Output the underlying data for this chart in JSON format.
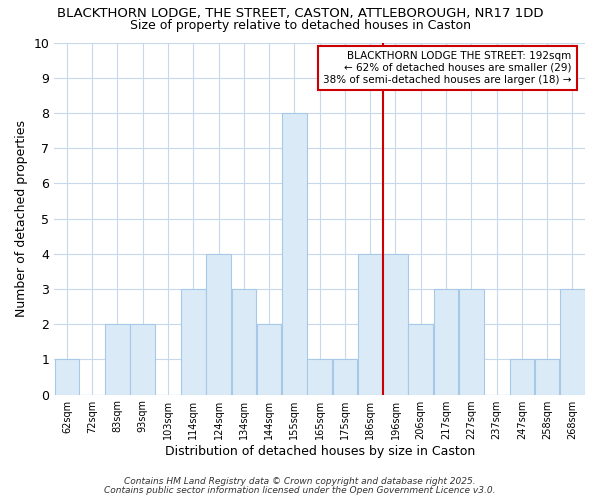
{
  "title_line1": "BLACKTHORN LODGE, THE STREET, CASTON, ATTLEBOROUGH, NR17 1DD",
  "title_line2": "Size of property relative to detached houses in Caston",
  "xlabel": "Distribution of detached houses by size in Caston",
  "ylabel": "Number of detached properties",
  "categories": [
    "62sqm",
    "72sqm",
    "83sqm",
    "93sqm",
    "103sqm",
    "114sqm",
    "124sqm",
    "134sqm",
    "144sqm",
    "155sqm",
    "165sqm",
    "175sqm",
    "186sqm",
    "196sqm",
    "206sqm",
    "217sqm",
    "227sqm",
    "237sqm",
    "247sqm",
    "258sqm",
    "268sqm"
  ],
  "values": [
    1,
    0,
    2,
    2,
    0,
    3,
    4,
    3,
    2,
    8,
    1,
    1,
    4,
    4,
    2,
    3,
    3,
    0,
    1,
    1,
    3
  ],
  "bar_color": "#daeaf7",
  "bar_edge_color": "#a8c8e8",
  "grid_color": "#c8d8ec",
  "background_color": "#ffffff",
  "red_line_color": "#cc0000",
  "annotation_text": "BLACKTHORN LODGE THE STREET: 192sqm\n← 62% of detached houses are smaller (29)\n38% of semi-detached houses are larger (18) →",
  "annotation_box_edge": "#cc0000",
  "annotation_box_face": "#ffffff",
  "ylim": [
    0,
    10
  ],
  "yticks": [
    0,
    1,
    2,
    3,
    4,
    5,
    6,
    7,
    8,
    9,
    10
  ],
  "footnote_line1": "Contains HM Land Registry data © Crown copyright and database right 2025.",
  "footnote_line2": "Contains public sector information licensed under the Open Government Licence v3.0."
}
